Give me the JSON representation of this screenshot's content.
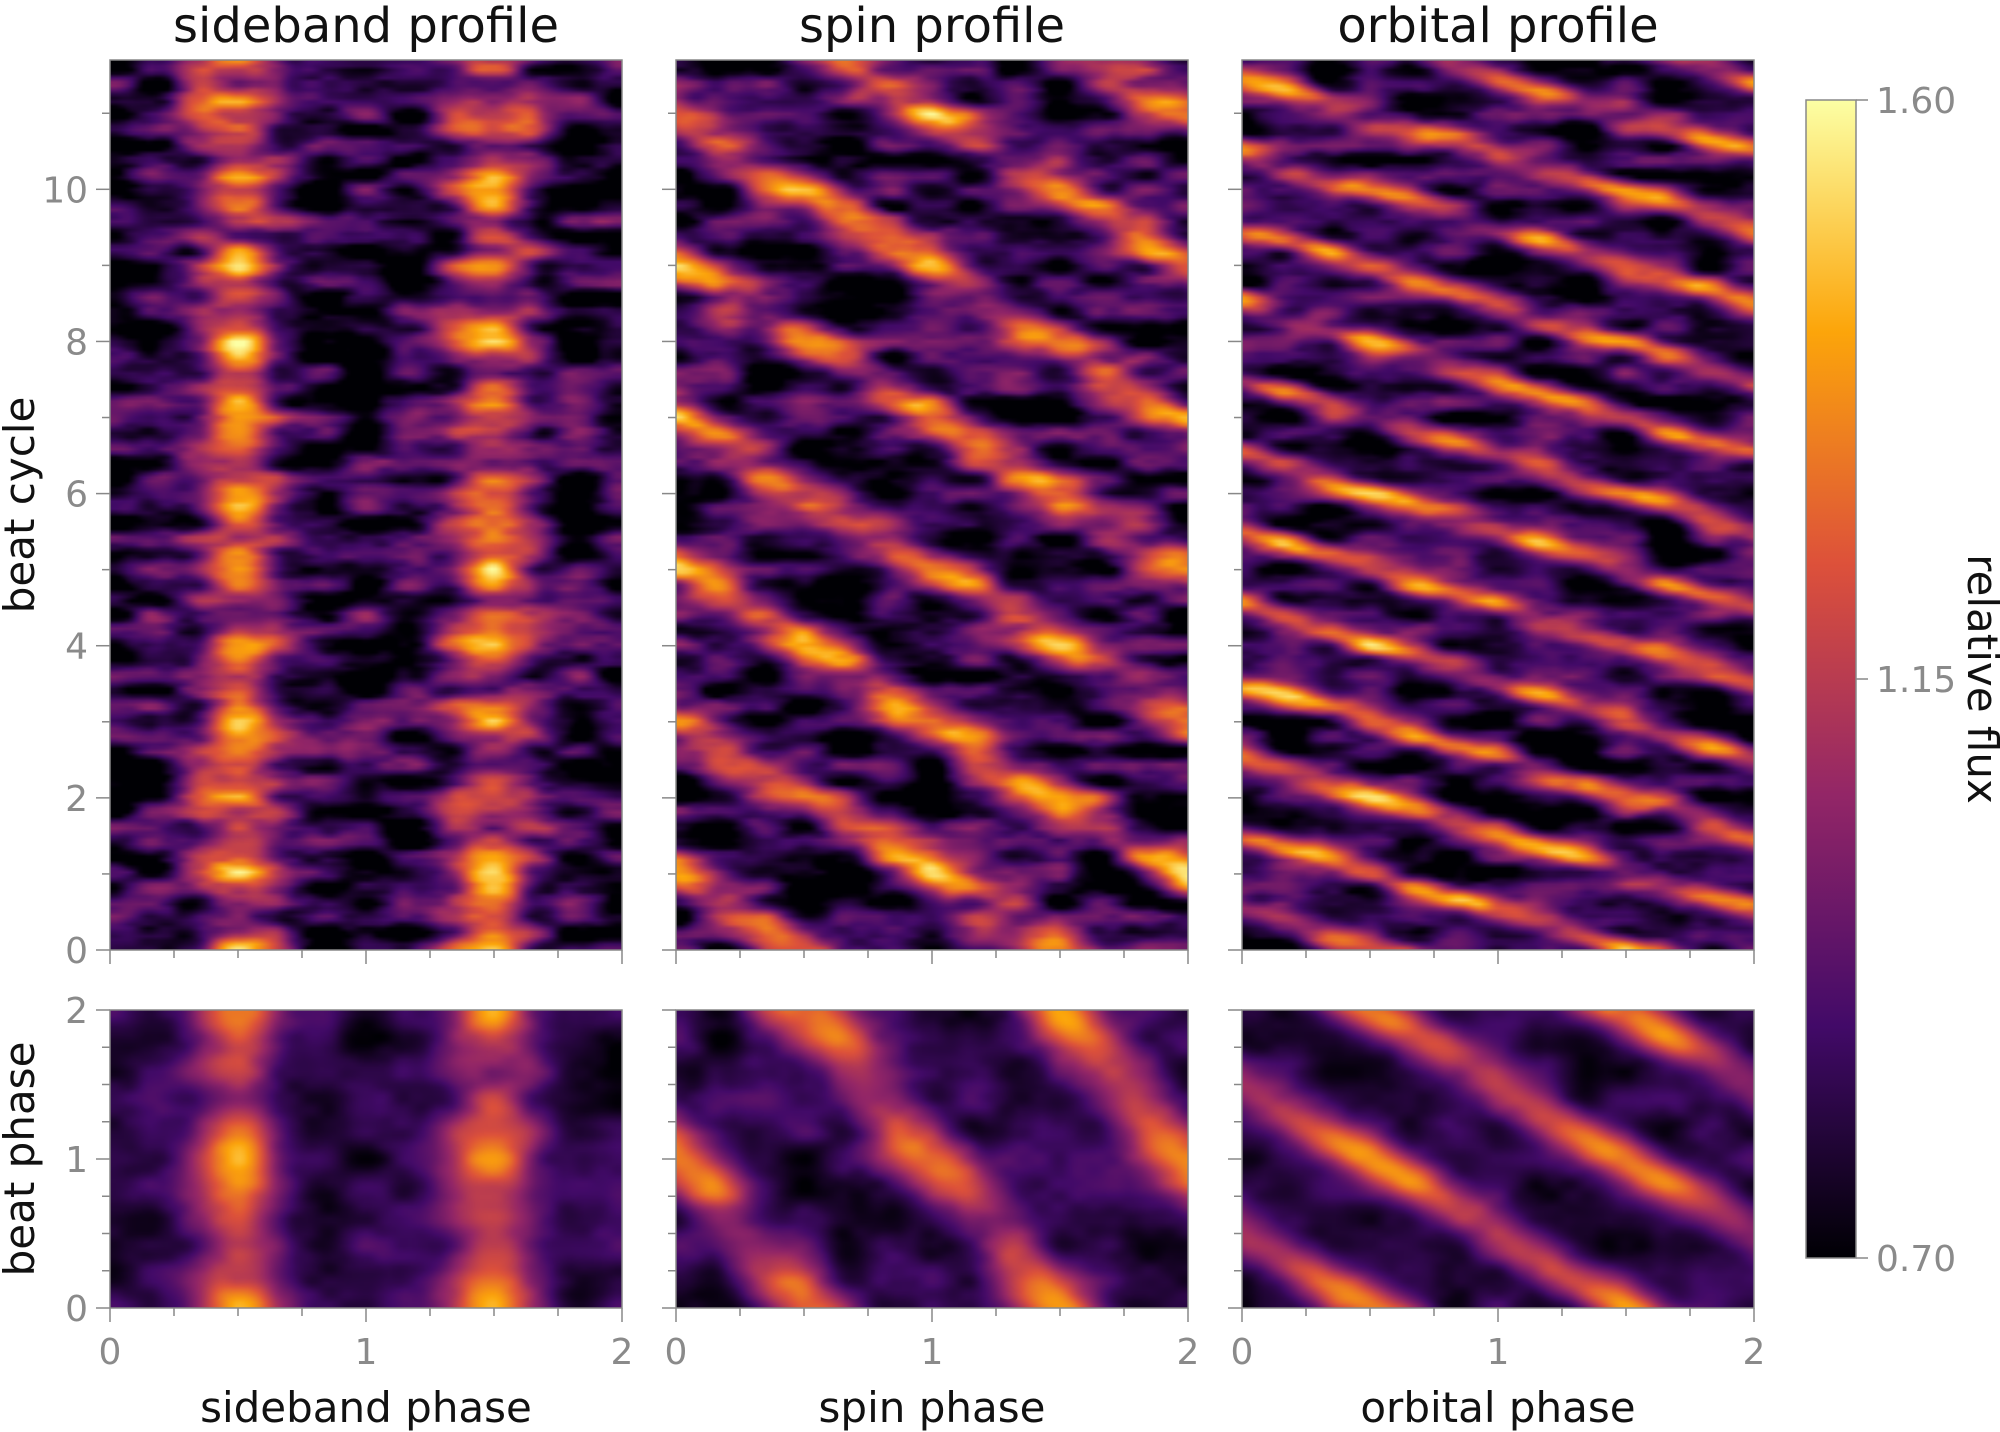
{
  "figure": {
    "titles": [
      "sideband profile",
      "spin profile",
      "orbital profile"
    ],
    "xlabels": [
      "sideband phase",
      "spin phase",
      "orbital phase"
    ],
    "ylabel_top": "beat cycle",
    "ylabel_bottom": "beat phase",
    "colorbar_label": "relative flux"
  },
  "chart_data": [
    {
      "type": "heatmap",
      "title": "sideband profile",
      "xlabel": "",
      "ylabel": "beat cycle",
      "xlim": [
        0,
        2
      ],
      "ylim": [
        0,
        11.7
      ],
      "xticks": [
        0,
        1,
        2
      ],
      "yticks": [
        0,
        2,
        4,
        6,
        8,
        10
      ],
      "pattern": {
        "slope": 0,
        "fx": 2,
        "fy": 2,
        "noise": 0.55
      },
      "value_range": [
        0.7,
        1.6
      ]
    },
    {
      "type": "heatmap",
      "title": "spin profile",
      "xlabel": "",
      "ylabel": "",
      "xlim": [
        0,
        2
      ],
      "ylim": [
        0,
        11.7
      ],
      "xticks": [
        0,
        1,
        2
      ],
      "yticks": [
        0,
        2,
        4,
        6,
        8,
        10
      ],
      "pattern": {
        "slope": 0.5,
        "fx": 2,
        "fy": 2,
        "noise": 0.5
      },
      "value_range": [
        0.7,
        1.6
      ]
    },
    {
      "type": "heatmap",
      "title": "orbital profile",
      "xlabel": "",
      "ylabel": "",
      "xlim": [
        0,
        2
      ],
      "ylim": [
        0,
        11.7
      ],
      "xticks": [
        0,
        1,
        2
      ],
      "yticks": [
        0,
        2,
        4,
        6,
        8,
        10
      ],
      "pattern": {
        "slope": 1.0,
        "fx": 2,
        "fy": 3,
        "noise": 0.45
      },
      "value_range": [
        0.7,
        1.6
      ]
    },
    {
      "type": "heatmap",
      "title": "",
      "xlabel": "sideband phase",
      "ylabel": "beat phase",
      "xlim": [
        0,
        2
      ],
      "ylim": [
        0,
        2
      ],
      "xticks": [
        0,
        1,
        2
      ],
      "yticks": [
        0,
        1,
        2
      ],
      "pattern": {
        "slope": 0,
        "fx": 2,
        "fy": 2,
        "noise": 0.25
      },
      "value_range": [
        0.7,
        1.6
      ]
    },
    {
      "type": "heatmap",
      "title": "",
      "xlabel": "spin phase",
      "ylabel": "",
      "xlim": [
        0,
        2
      ],
      "ylim": [
        0,
        2
      ],
      "xticks": [
        0,
        1,
        2
      ],
      "yticks": [
        0,
        1,
        2
      ],
      "pattern": {
        "slope": 0.5,
        "fx": 2,
        "fy": 2,
        "noise": 0.25
      },
      "value_range": [
        0.7,
        1.6
      ]
    },
    {
      "type": "heatmap",
      "title": "",
      "xlabel": "orbital phase",
      "ylabel": "",
      "xlim": [
        0,
        2
      ],
      "ylim": [
        0,
        2
      ],
      "xticks": [
        0,
        1,
        2
      ],
      "yticks": [
        0,
        1,
        2
      ],
      "pattern": {
        "slope": 1.0,
        "fx": 2,
        "fy": 2,
        "noise": 0.2
      },
      "value_range": [
        0.7,
        1.6
      ]
    }
  ],
  "colorbar": {
    "label": "relative flux",
    "ticks": [
      0.7,
      1.15,
      1.6
    ],
    "tick_labels": [
      "0.70",
      "1.15",
      "1.60"
    ],
    "colormap": "inferno",
    "colors": [
      "#000004",
      "#420a68",
      "#932667",
      "#dd513a",
      "#fca50a",
      "#fcffa4"
    ]
  }
}
